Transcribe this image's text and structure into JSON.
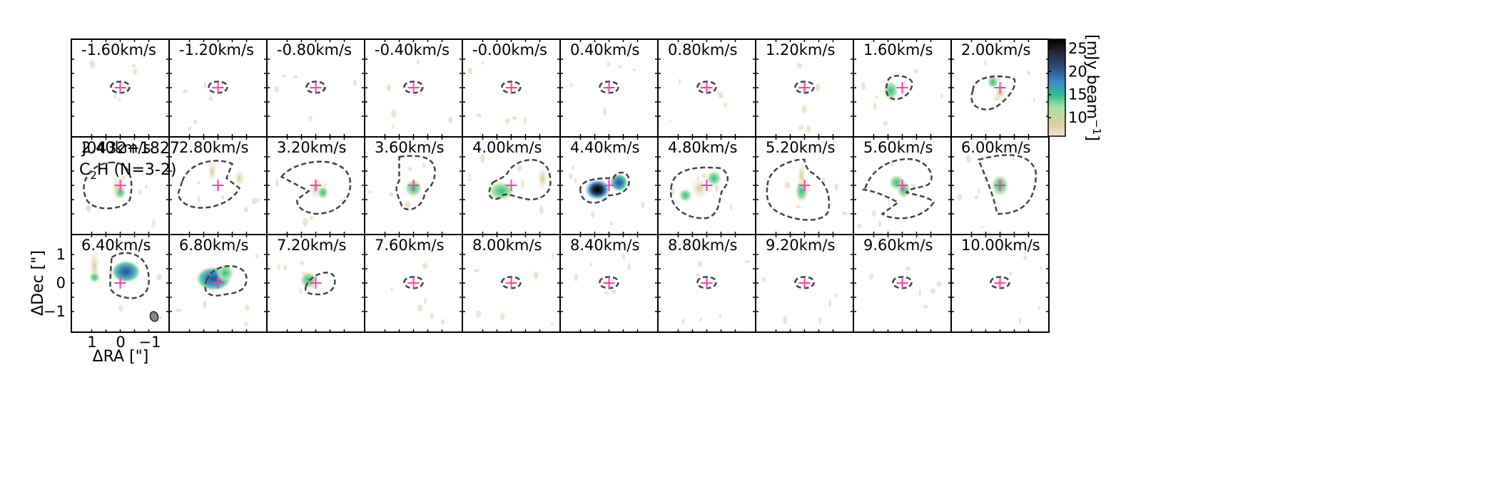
{
  "chart_data": {
    "type": "heatmap",
    "source_label": "J0432+1827",
    "line_label_main": "C",
    "line_label_sub": "2",
    "line_label_rest": "H (N=3-2)",
    "xlabel": "ΔRA [\"]",
    "ylabel": "ΔDec [\"]",
    "x_ticks": [
      "1",
      "0",
      "−1"
    ],
    "y_ticks": [
      "1",
      "0",
      "−1"
    ],
    "colorbar_label": "[mJy beam",
    "colorbar_label_sup": "−1",
    "colorbar_label_end": "]",
    "colorbar_ticks": [
      "25",
      "20",
      "15",
      "10"
    ],
    "colorbar_range": [
      6,
      27
    ],
    "colormap": [
      "#efe7d4",
      "#dccf9c",
      "#a8e0a8",
      "#2ec08a",
      "#3b8fc9",
      "#2e4f80",
      "#27283b",
      "#000000"
    ],
    "marker_color": "#ff3fa8",
    "contour_color": "#444444",
    "panels": [
      {
        "label": "-1.60km/s"
      },
      {
        "label": "-1.20km/s"
      },
      {
        "label": "-0.80km/s"
      },
      {
        "label": "-0.40km/s"
      },
      {
        "label": "-0.00km/s"
      },
      {
        "label": "0.40km/s"
      },
      {
        "label": "0.80km/s"
      },
      {
        "label": "1.20km/s"
      },
      {
        "label": "1.60km/s"
      },
      {
        "label": "2.00km/s"
      },
      {
        "label": "2.40km/s"
      },
      {
        "label": "2.80km/s"
      },
      {
        "label": "3.20km/s"
      },
      {
        "label": "3.60km/s"
      },
      {
        "label": "4.00km/s"
      },
      {
        "label": "4.40km/s"
      },
      {
        "label": "4.80km/s"
      },
      {
        "label": "5.20km/s"
      },
      {
        "label": "5.60km/s"
      },
      {
        "label": "6.00km/s"
      },
      {
        "label": "6.40km/s"
      },
      {
        "label": "6.80km/s"
      },
      {
        "label": "7.20km/s"
      },
      {
        "label": "7.60km/s"
      },
      {
        "label": "8.00km/s"
      },
      {
        "label": "8.40km/s"
      },
      {
        "label": "8.80km/s"
      },
      {
        "label": "9.20km/s"
      },
      {
        "label": "9.60km/s"
      },
      {
        "label": "10.00km/s"
      }
    ]
  }
}
